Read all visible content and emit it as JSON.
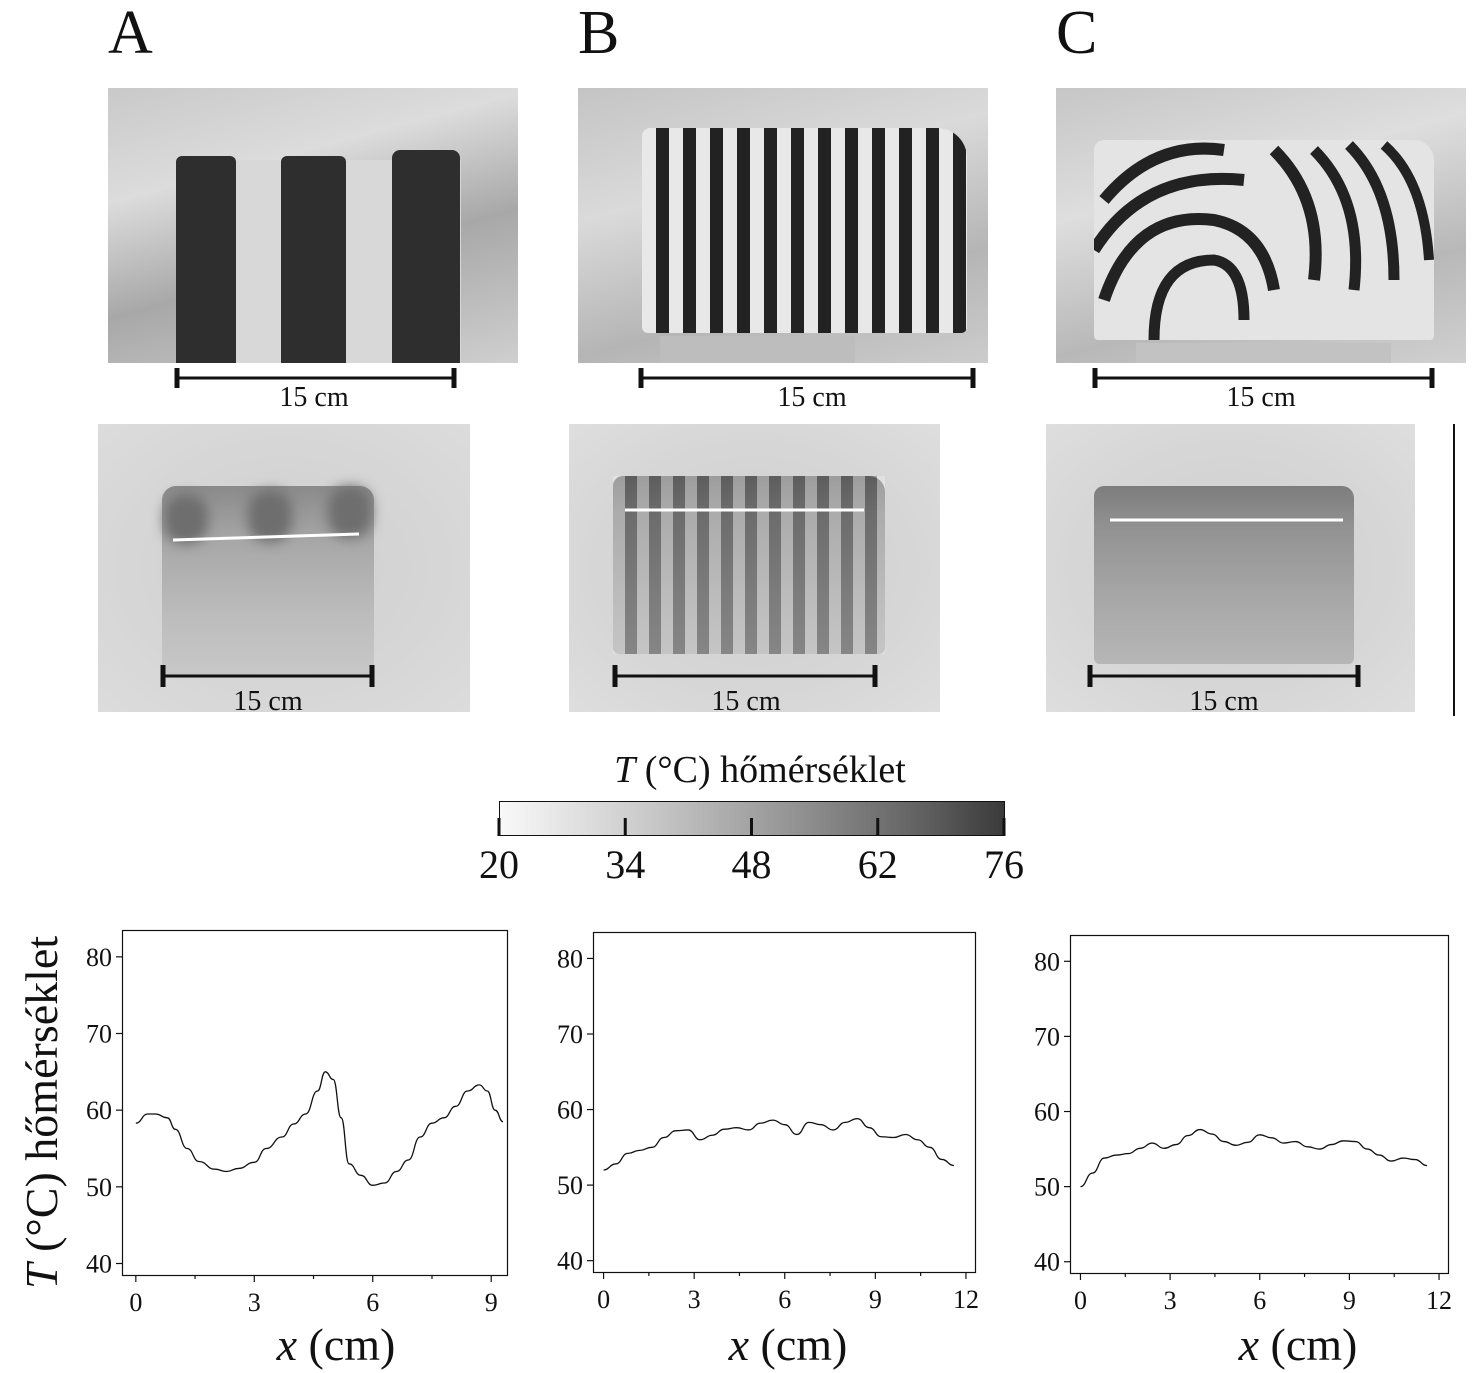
{
  "panels": [
    {
      "letter": "A",
      "scale_label": "15 cm",
      "thermal_scale_label": "15 cm"
    },
    {
      "letter": "B",
      "scale_label": "15 cm",
      "thermal_scale_label": "15 cm"
    },
    {
      "letter": "C",
      "scale_label": "15 cm",
      "thermal_scale_label": "15 cm"
    }
  ],
  "colorbar": {
    "title_symbol": "T",
    "title_rest": " (°C) hőmérséklet",
    "ticks": [
      "20",
      "34",
      "48",
      "62",
      "76"
    ],
    "range": [
      20,
      76
    ]
  },
  "plots": {
    "ylabel_symbol": "T",
    "ylabel_rest": " (°C) hőmérséklet",
    "xlabel_symbol": "x",
    "xlabel_rest": " (cm)"
  },
  "chart_data": [
    {
      "type": "line",
      "xlabel": "x (cm)",
      "ylabel": "T (°C) hőmérséklet",
      "xlim": [
        -0.35,
        9.4
      ],
      "ylim": [
        38.5,
        83.5
      ],
      "xticks": [
        "0",
        "3",
        "6",
        "9"
      ],
      "yticks": [
        "40",
        "50",
        "60",
        "70",
        "80"
      ],
      "x": [
        0,
        0.3,
        0.5,
        0.8,
        1.0,
        1.3,
        1.6,
        2.0,
        2.3,
        2.6,
        3.0,
        3.3,
        3.7,
        4.0,
        4.3,
        4.6,
        4.8,
        5.0,
        5.2,
        5.4,
        5.7,
        6.0,
        6.3,
        6.6,
        6.9,
        7.2,
        7.5,
        7.8,
        8.1,
        8.4,
        8.7,
        8.9,
        9.1,
        9.3
      ],
      "y": [
        58.3,
        59.5,
        59.5,
        59.0,
        57.5,
        55.0,
        53.3,
        52.3,
        52.0,
        52.4,
        53.2,
        55.0,
        56.5,
        58.2,
        59.5,
        62.5,
        65.0,
        64.0,
        59.0,
        53.0,
        51.5,
        50.2,
        50.5,
        52.0,
        53.5,
        56.5,
        58.3,
        59.0,
        60.5,
        62.5,
        63.3,
        62.5,
        60.0,
        58.5
      ]
    },
    {
      "type": "line",
      "xlabel": "x (cm)",
      "ylabel": "T (°C) hőmérséklet",
      "xlim": [
        -0.35,
        12.3
      ],
      "ylim": [
        38.5,
        83.5
      ],
      "xticks": [
        "0",
        "3",
        "6",
        "9",
        "12"
      ],
      "yticks": [
        "40",
        "50",
        "60",
        "70",
        "80"
      ],
      "x": [
        0,
        0.4,
        0.8,
        1.2,
        1.6,
        2.0,
        2.4,
        2.8,
        3.2,
        3.6,
        4.0,
        4.4,
        4.8,
        5.2,
        5.6,
        6.0,
        6.4,
        6.8,
        7.2,
        7.6,
        8.0,
        8.4,
        8.8,
        9.2,
        9.6,
        10.0,
        10.4,
        10.8,
        11.2,
        11.6
      ],
      "y": [
        52.0,
        52.8,
        54.2,
        54.6,
        55.0,
        56.3,
        57.2,
        57.3,
        56.0,
        56.6,
        57.4,
        57.6,
        57.3,
        58.2,
        58.6,
        58.0,
        56.7,
        58.3,
        58.0,
        57.3,
        58.3,
        58.8,
        57.6,
        56.4,
        56.3,
        56.7,
        56.0,
        55.0,
        53.4,
        52.6
      ]
    },
    {
      "type": "line",
      "xlabel": "x (cm)",
      "ylabel": "T (°C) hőmérséklet",
      "xlim": [
        -0.35,
        12.3
      ],
      "ylim": [
        38.5,
        83.5
      ],
      "xticks": [
        "0",
        "3",
        "6",
        "9",
        "12"
      ],
      "yticks": [
        "40",
        "50",
        "60",
        "70",
        "80"
      ],
      "x": [
        0,
        0.4,
        0.8,
        1.2,
        1.6,
        2.0,
        2.4,
        2.8,
        3.2,
        3.6,
        4.0,
        4.4,
        4.8,
        5.2,
        5.6,
        6.0,
        6.4,
        6.8,
        7.2,
        7.6,
        8.0,
        8.4,
        8.8,
        9.2,
        9.6,
        10.0,
        10.4,
        10.8,
        11.2,
        11.6
      ],
      "y": [
        50.0,
        51.8,
        53.8,
        54.2,
        54.4,
        55.1,
        55.8,
        55.1,
        55.6,
        56.8,
        57.6,
        57.0,
        56.0,
        55.5,
        55.9,
        56.9,
        56.5,
        55.8,
        56.0,
        55.3,
        55.0,
        55.6,
        56.1,
        56.0,
        55.0,
        54.2,
        53.4,
        53.8,
        53.6,
        52.8
      ]
    }
  ]
}
